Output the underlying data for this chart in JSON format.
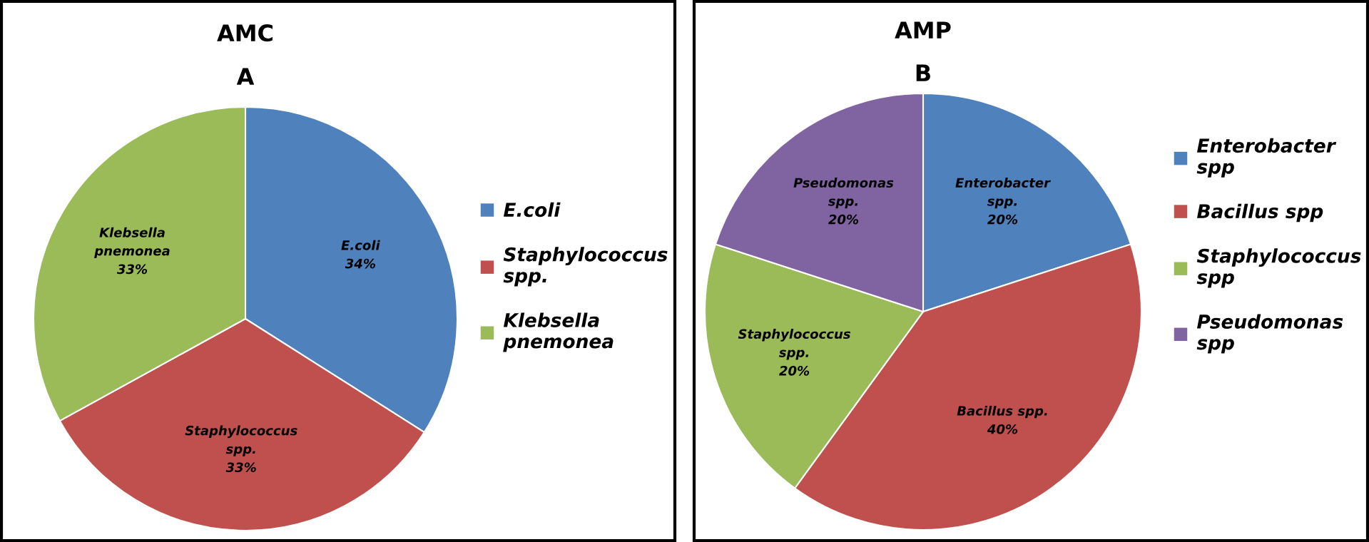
{
  "chart_data": [
    {
      "type": "pie",
      "title": "AMC",
      "subtitle": "A",
      "categories": [
        "E.coli",
        "Staphylococcus\nspp.",
        "Klebsella\npnemonea"
      ],
      "values": [
        34,
        33,
        33
      ],
      "colors": [
        "#4f81bd",
        "#c0504d",
        "#9bbb59"
      ],
      "value_labels": [
        "E.coli\n34%",
        "Staphylococcus\nspp.\n33%",
        "Klebsella\npnemonea\n33%"
      ],
      "legend": "right"
    },
    {
      "type": "pie",
      "title": "AMP",
      "subtitle": "B",
      "categories": [
        "Enterobacter\nspp",
        "Bacillus spp",
        "Staphylococcus\nspp",
        "Pseudomonas\nspp"
      ],
      "values": [
        20,
        40,
        20,
        20
      ],
      "colors": [
        "#4f81bd",
        "#c0504d",
        "#9bbb59",
        "#8064a2"
      ],
      "value_labels": [
        "Enterobacter\nspp.\n20%",
        "Bacillus spp.\n40%",
        "Staphylococcus\nspp.\n20%",
        "Pseudomonas\nspp.\n20%"
      ],
      "legend": "right"
    }
  ]
}
